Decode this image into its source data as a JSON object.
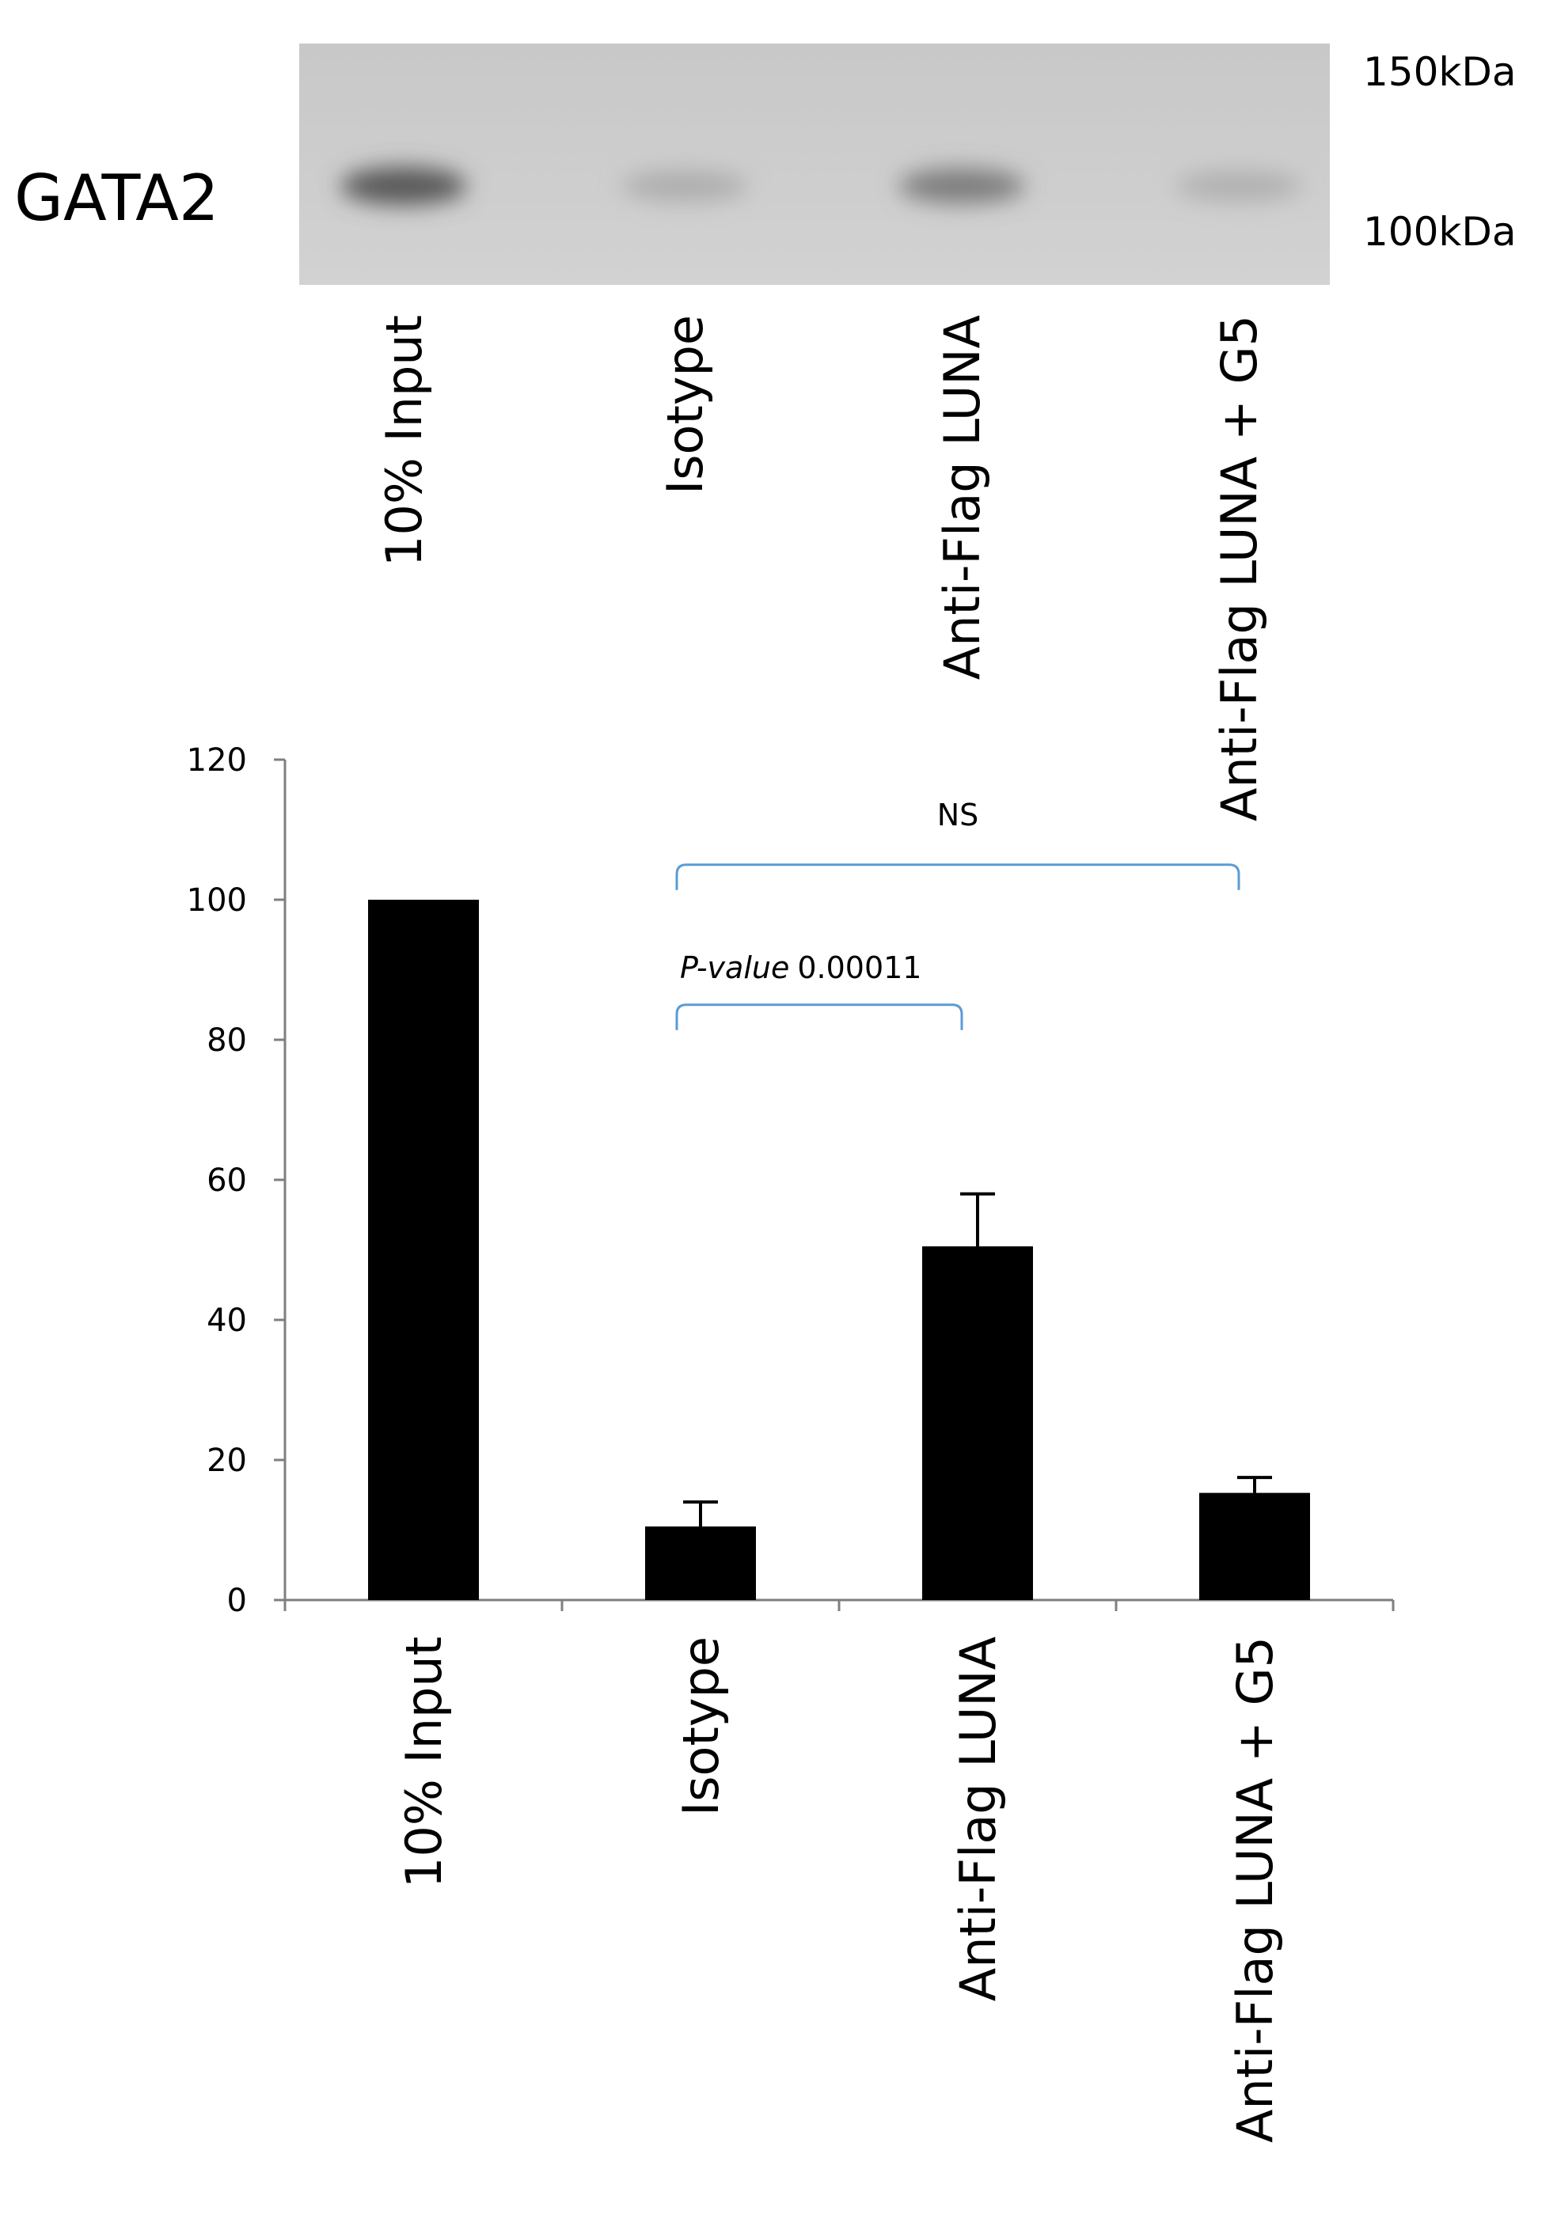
{
  "blot": {
    "protein_label": "GATA2",
    "markers": [
      "150kDa",
      "100kDa"
    ],
    "lanes": [
      "10% Input",
      "Isotype",
      "Anti-Flag LUNA",
      "Anti-Flag LUNA + G5"
    ],
    "band_intensity": [
      0.75,
      0.18,
      0.5,
      0.16
    ]
  },
  "chart_data": {
    "type": "bar",
    "title": "",
    "xlabel": "",
    "ylabel": "",
    "categories": [
      "10% Input",
      "Isotype",
      "Anti-Flag LUNA",
      "Anti-Flag LUNA + G5"
    ],
    "values": [
      100,
      10.5,
      50.5,
      15.3
    ],
    "errors": [
      0,
      3.5,
      7.5,
      2.2
    ],
    "ylim": [
      0,
      120
    ],
    "yticks": [
      "0",
      "20",
      "40",
      "60",
      "80",
      "100",
      "120"
    ],
    "grid": false,
    "bar_color": "#000000",
    "annotations": [
      {
        "type": "bracket",
        "from_category": 1,
        "to_category": 2,
        "label_italic": "P-value",
        "label_text": "0.00011",
        "level": 85
      },
      {
        "type": "bracket",
        "from_category": 1,
        "to_category": 3,
        "label_italic": "",
        "label_text": "NS",
        "level": 105
      }
    ],
    "bracket_color": "#5b9bd5"
  }
}
